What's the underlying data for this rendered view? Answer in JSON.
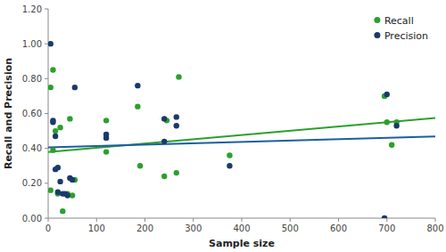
{
  "chart_data": {
    "type": "scatter",
    "xlabel": "Sample size",
    "ylabel": "Recall and Precision",
    "xlim": [
      0,
      800
    ],
    "ylim": [
      0.0,
      1.2
    ],
    "xticks": [
      0,
      100,
      200,
      300,
      400,
      500,
      600,
      700,
      800
    ],
    "yticks": [
      {
        "value": 0.0,
        "label": "0.00"
      },
      {
        "value": 0.2,
        "label": "0.20"
      },
      {
        "value": 0.4,
        "label": "0.40"
      },
      {
        "value": 0.6,
        "label": "0.60"
      },
      {
        "value": 0.8,
        "label": "0.80"
      },
      {
        "value": 1.0,
        "label": "1.00"
      },
      {
        "value": 1.2,
        "label": "1.20"
      }
    ],
    "grid": false,
    "legend": "upper right",
    "series": [
      {
        "name": "Recall",
        "type": "scatter",
        "marker": "circle",
        "color": "#2ca02c",
        "x": [
          5,
          5,
          10,
          10,
          15,
          20,
          25,
          30,
          40,
          45,
          50,
          55,
          120,
          120,
          185,
          190,
          240,
          245,
          265,
          270,
          375,
          695,
          700,
          710,
          720
        ],
        "values": [
          0.75,
          0.16,
          0.85,
          0.39,
          0.5,
          0.14,
          0.52,
          0.04,
          0.14,
          0.57,
          0.13,
          0.22,
          0.56,
          0.38,
          0.64,
          0.3,
          0.24,
          0.56,
          0.26,
          0.81,
          0.36,
          0.7,
          0.55,
          0.42,
          0.55
        ]
      },
      {
        "name": "Precision",
        "type": "scatter",
        "marker": "circle",
        "color": "#1a3a6b",
        "x": [
          5,
          10,
          10,
          15,
          15,
          20,
          20,
          25,
          30,
          35,
          40,
          45,
          50,
          55,
          120,
          120,
          185,
          240,
          240,
          265,
          265,
          375,
          695,
          700,
          720
        ],
        "values": [
          1.0,
          0.56,
          0.55,
          0.47,
          0.28,
          0.15,
          0.29,
          0.21,
          0.14,
          0.14,
          0.13,
          0.23,
          0.22,
          0.75,
          0.46,
          0.48,
          0.76,
          0.44,
          0.57,
          0.53,
          0.58,
          0.3,
          0.0,
          0.71,
          0.53
        ]
      },
      {
        "type": "line",
        "line_style": "solid",
        "color": "#2ca02c",
        "x": [
          0,
          800
        ],
        "values": [
          0.3796,
          0.5741
        ]
      },
      {
        "type": "line",
        "line_style": "solid",
        "color": "#1a5fa0",
        "x": [
          0,
          800
        ],
        "values": [
          0.4056,
          0.4688
        ]
      }
    ]
  }
}
